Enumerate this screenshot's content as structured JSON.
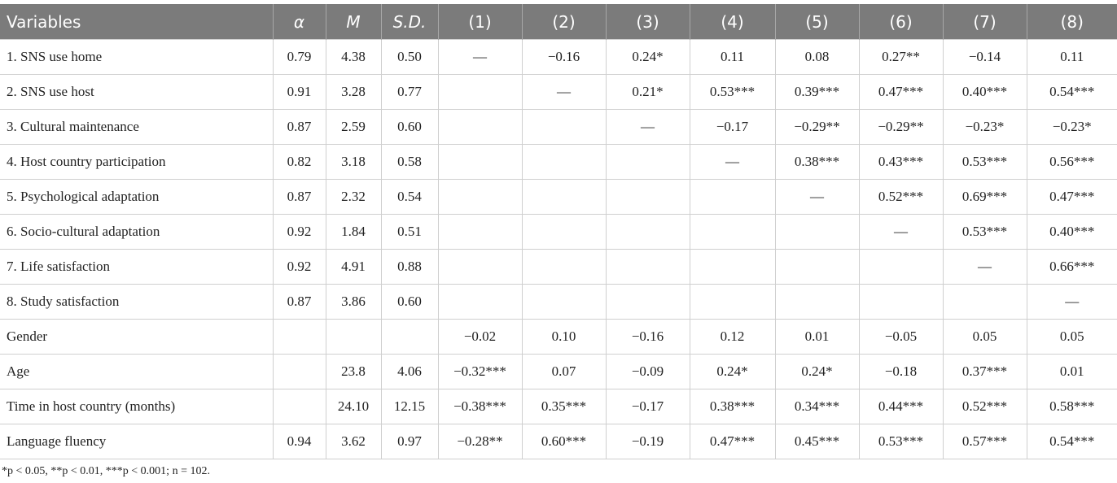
{
  "table": {
    "header": [
      "Variables",
      "α",
      "M",
      "S.D.",
      "(1)",
      "(2)",
      "(3)",
      "(4)",
      "(5)",
      "(6)",
      "(7)",
      "(8)"
    ],
    "rows": [
      [
        "1. SNS use home",
        "0.79",
        "4.38",
        "0.50",
        "—",
        "−0.16",
        "0.24*",
        "0.11",
        "0.08",
        "0.27**",
        "−0.14",
        "0.11"
      ],
      [
        "2. SNS use host",
        "0.91",
        "3.28",
        "0.77",
        null,
        "—",
        "0.21*",
        "0.53***",
        "0.39***",
        "0.47***",
        "0.40***",
        "0.54***"
      ],
      [
        "3. Cultural maintenance",
        "0.87",
        "2.59",
        "0.60",
        null,
        null,
        "—",
        "−0.17",
        "−0.29**",
        "−0.29**",
        "−0.23*",
        "−0.23*"
      ],
      [
        "4. Host country participation",
        "0.82",
        "3.18",
        "0.58",
        null,
        null,
        null,
        "—",
        "0.38***",
        "0.43***",
        "0.53***",
        "0.56***"
      ],
      [
        "5. Psychological adaptation",
        "0.87",
        "2.32",
        "0.54",
        null,
        null,
        null,
        null,
        "—",
        "0.52***",
        "0.69***",
        "0.47***"
      ],
      [
        "6. Socio-cultural adaptation",
        "0.92",
        "1.84",
        "0.51",
        null,
        null,
        null,
        null,
        null,
        "—",
        "0.53***",
        "0.40***"
      ],
      [
        "7. Life satisfaction",
        "0.92",
        "4.91",
        "0.88",
        null,
        null,
        null,
        null,
        null,
        null,
        "—",
        "0.66***"
      ],
      [
        "8. Study satisfaction",
        "0.87",
        "3.86",
        "0.60",
        null,
        null,
        null,
        null,
        null,
        null,
        null,
        "—"
      ],
      [
        "Gender",
        null,
        null,
        null,
        "−0.02",
        "0.10",
        "−0.16",
        "0.12",
        "0.01",
        "−0.05",
        "0.05",
        "0.05"
      ],
      [
        "Age",
        null,
        "23.8",
        "4.06",
        "−0.32***",
        "0.07",
        "−0.09",
        "0.24*",
        "0.24*",
        "−0.18",
        "0.37***",
        "0.01"
      ],
      [
        "Time in host country (months)",
        null,
        "24.10",
        "12.15",
        "−0.38***",
        "0.35***",
        "−0.17",
        "0.38***",
        "0.34***",
        "0.44***",
        "0.52***",
        "0.58***"
      ],
      [
        "Language fluency",
        "0.94",
        "3.62",
        "0.97",
        "−0.28**",
        "0.60***",
        "−0.19",
        "0.47***",
        "0.45***",
        "0.53***",
        "0.57***",
        "0.54***"
      ]
    ],
    "footnote": "*p < 0.05, **p < 0.01, ***p < 0.001; n = 102."
  }
}
